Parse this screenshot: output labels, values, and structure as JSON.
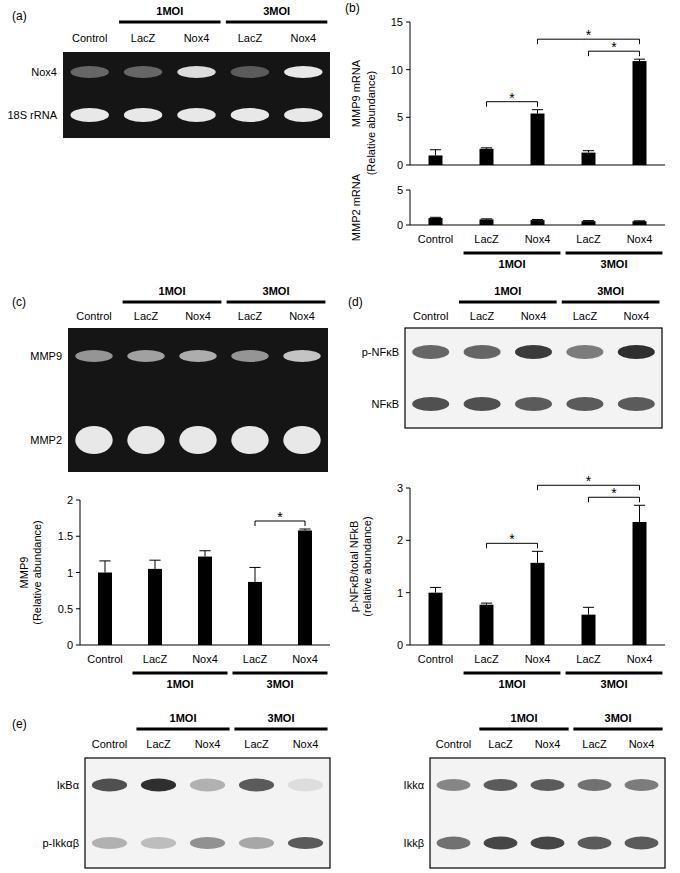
{
  "blots": [
    {
      "panel": "(a)",
      "lanes": [
        "Control",
        "LacZ",
        "Nox4",
        "LacZ",
        "Nox4"
      ],
      "groups": [
        {
          "label": "1MOI",
          "members": [
            1,
            2
          ]
        },
        {
          "label": "3MOI",
          "members": [
            3,
            4
          ]
        }
      ],
      "rows": [
        {
          "label": "Nox4",
          "intensities": [
            0.35,
            0.35,
            0.85,
            0.3,
            0.9
          ]
        },
        {
          "label": "18S rRNA",
          "intensities": [
            0.9,
            0.9,
            0.9,
            0.9,
            0.9
          ]
        }
      ]
    },
    {
      "panel": "(c)",
      "lanes": [
        "Control",
        "LacZ",
        "Nox4",
        "LacZ",
        "Nox4"
      ],
      "groups": [
        {
          "label": "1MOI",
          "members": [
            1,
            2
          ]
        },
        {
          "label": "3MOI",
          "members": [
            3,
            4
          ]
        }
      ],
      "rows": [
        {
          "label": "MMP9",
          "intensities": [
            0.55,
            0.6,
            0.65,
            0.55,
            0.75
          ]
        },
        {
          "label": "MMP2",
          "intensities": [
            0.9,
            0.9,
            0.9,
            0.9,
            0.9
          ]
        }
      ]
    },
    {
      "panel": "(d)",
      "lanes": [
        "Control",
        "LacZ",
        "Nox4",
        "LacZ",
        "Nox4"
      ],
      "groups": [
        {
          "label": "1MOI",
          "members": [
            1,
            2
          ]
        },
        {
          "label": "3MOI",
          "members": [
            3,
            4
          ]
        }
      ],
      "rows": [
        {
          "label": "p-NFκB",
          "intensities": [
            0.65,
            0.65,
            0.85,
            0.55,
            0.9
          ]
        },
        {
          "label": "NFκB",
          "intensities": [
            0.75,
            0.75,
            0.7,
            0.7,
            0.7
          ]
        }
      ]
    },
    {
      "panel": "(e)",
      "lanes": [
        "Control",
        "LacZ",
        "Nox4",
        "LacZ",
        "Nox4"
      ],
      "groups": [
        {
          "label": "1MOI",
          "members": [
            1,
            2
          ]
        },
        {
          "label": "3MOI",
          "members": [
            3,
            4
          ]
        }
      ],
      "rows": [
        {
          "label": "IκBα",
          "intensities": [
            0.75,
            0.9,
            0.3,
            0.7,
            0.1
          ]
        },
        {
          "label": "p-Ikkαβ",
          "intensities": [
            0.3,
            0.25,
            0.45,
            0.35,
            0.7
          ]
        }
      ]
    },
    {
      "lanes": [
        "Control",
        "LacZ",
        "Nox4",
        "LacZ",
        "Nox4"
      ],
      "groups": [
        {
          "label": "1MOI",
          "members": [
            1,
            2
          ]
        },
        {
          "label": "3MOI",
          "members": [
            3,
            4
          ]
        }
      ],
      "rows": [
        {
          "label": "Ikkα",
          "intensities": [
            0.5,
            0.7,
            0.7,
            0.6,
            0.55
          ]
        },
        {
          "label": "Ikkβ",
          "intensities": [
            0.6,
            0.8,
            0.8,
            0.7,
            0.7
          ]
        }
      ]
    }
  ],
  "chart_data": [
    {
      "type": "bar",
      "panel": "(b)",
      "ylabel": [
        "MMP9 mRNA"
      ],
      "shared_ylabel": "(Relative abundance)",
      "categories": [
        "Control",
        "LacZ",
        "Nox4",
        "LacZ",
        "Nox4"
      ],
      "values": [
        1,
        1.7,
        5.4,
        1.3,
        10.9
      ],
      "errors": [
        0.6,
        0.1,
        0.4,
        0.2,
        0.2
      ],
      "ylim": [
        0,
        15
      ],
      "yticks": [
        0,
        5,
        10,
        15
      ],
      "color": "#000000",
      "tick_labels": "y",
      "significance": [
        {
          "from": 1,
          "to": 2,
          "label": "*"
        },
        {
          "from": 3,
          "to": 4,
          "label": "*"
        },
        {
          "from": 2,
          "to": 4,
          "label": "*"
        }
      ]
    },
    {
      "type": "bar",
      "ylabel": [
        "MMP2 mRNA"
      ],
      "categories": [
        "Control",
        "LacZ",
        "Nox4",
        "LacZ",
        "Nox4"
      ],
      "groups": [
        {
          "label": "1MOI",
          "members": [
            1,
            2
          ]
        },
        {
          "label": "3MOI",
          "members": [
            3,
            4
          ]
        }
      ],
      "values": [
        1,
        0.8,
        0.7,
        0.55,
        0.55
      ],
      "errors": [
        0.1,
        0.08,
        0.08,
        0.08,
        0.05
      ],
      "ylim": [
        0,
        5
      ],
      "yticks": [
        0,
        5
      ],
      "color": "#000000"
    },
    {
      "type": "bar",
      "ylabel": [
        "MMP9",
        "(Relative abundance)"
      ],
      "categories": [
        "Control",
        "LacZ",
        "Nox4",
        "LacZ",
        "Nox4"
      ],
      "groups": [
        {
          "label": "1MOI",
          "members": [
            1,
            2
          ]
        },
        {
          "label": "3MOI",
          "members": [
            3,
            4
          ]
        }
      ],
      "values": [
        1,
        1.05,
        1.22,
        0.87,
        1.58
      ],
      "errors": [
        0.16,
        0.12,
        0.08,
        0.2,
        0.02
      ],
      "ylim": [
        0,
        2
      ],
      "yticks": [
        0,
        0.5,
        1,
        1.5,
        2
      ],
      "color": "#000000",
      "significance": [
        {
          "from": 3,
          "to": 4,
          "label": "*"
        }
      ]
    },
    {
      "type": "bar",
      "ylabel": [
        "p-NFκB/total NFkB",
        "(relative abundance)"
      ],
      "categories": [
        "Control",
        "LacZ",
        "Nox4",
        "LacZ",
        "Nox4"
      ],
      "groups": [
        {
          "label": "1MOI",
          "members": [
            1,
            2
          ]
        },
        {
          "label": "3MOI",
          "members": [
            3,
            4
          ]
        }
      ],
      "values": [
        1,
        0.77,
        1.57,
        0.58,
        2.35
      ],
      "errors": [
        0.1,
        0.03,
        0.22,
        0.14,
        0.32
      ],
      "ylim": [
        0,
        3
      ],
      "yticks": [
        0,
        1,
        2,
        3
      ],
      "color": "#000000",
      "significance": [
        {
          "from": 1,
          "to": 2,
          "label": "*"
        },
        {
          "from": 3,
          "to": 4,
          "label": "*"
        },
        {
          "from": 2,
          "to": 4,
          "label": "*"
        }
      ]
    }
  ]
}
